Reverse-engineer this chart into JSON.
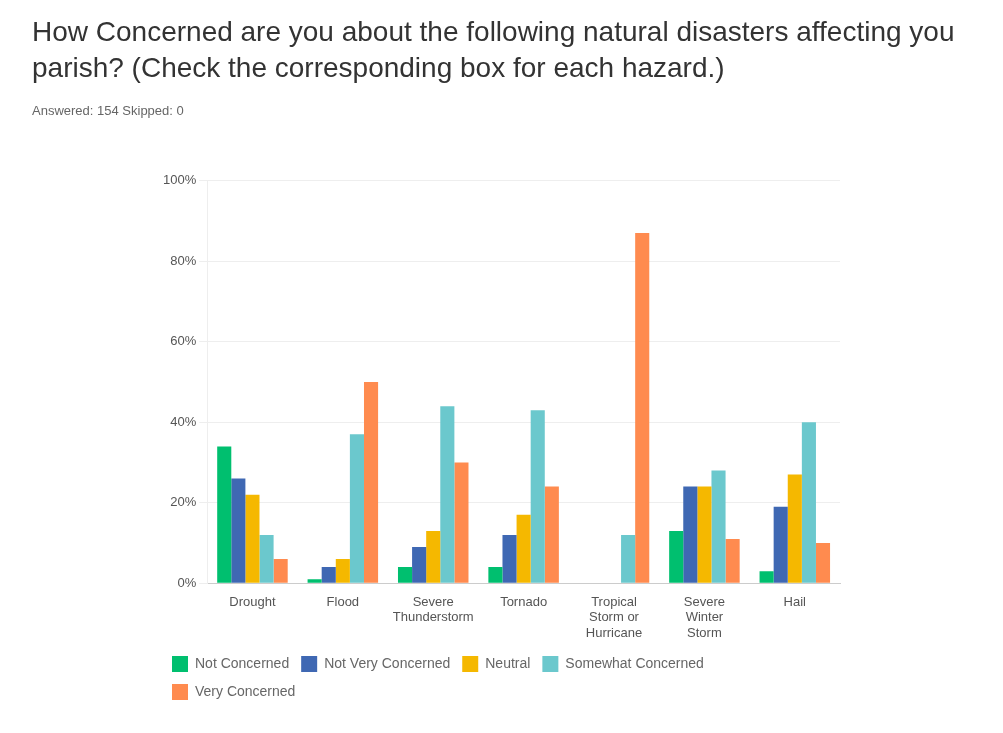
{
  "chart_data": {
    "type": "bar",
    "title": "How Concerned are you about the following natural disasters affecting you parish? (Check the corresponding box for each hazard.)",
    "subtitle": "Answered: 154    Skipped: 0",
    "categories": [
      "Drought",
      "Flood",
      "Severe Thunderstorm",
      "Tornado",
      "Tropical Storm or Hurricane",
      "Severe Winter Storm",
      "Hail"
    ],
    "series": [
      {
        "name": "Not Concerned",
        "color": "#00bf6f",
        "values": [
          34,
          1,
          4,
          4,
          0,
          13,
          3
        ]
      },
      {
        "name": "Not Very Concerned",
        "color": "#3f68b3",
        "values": [
          26,
          4,
          9,
          12,
          0,
          24,
          19
        ]
      },
      {
        "name": "Neutral",
        "color": "#f5b800",
        "values": [
          22,
          6,
          13,
          17,
          0,
          24,
          27
        ]
      },
      {
        "name": "Somewhat Concerned",
        "color": "#6bc8cd",
        "values": [
          12,
          37,
          44,
          43,
          12,
          28,
          40
        ]
      },
      {
        "name": "Very Concerned",
        "color": "#ff8b4f",
        "values": [
          6,
          50,
          30,
          24,
          87,
          11,
          10
        ]
      }
    ],
    "ylim": [
      0,
      100
    ],
    "yticks": [
      {
        "value": 0,
        "label": "0%"
      },
      {
        "value": 20,
        "label": "20%"
      },
      {
        "value": 40,
        "label": "40%"
      },
      {
        "value": 60,
        "label": "60%"
      },
      {
        "value": 80,
        "label": "80%"
      },
      {
        "value": 100,
        "label": "100%"
      }
    ],
    "grid": "y",
    "legend": "bottom"
  }
}
